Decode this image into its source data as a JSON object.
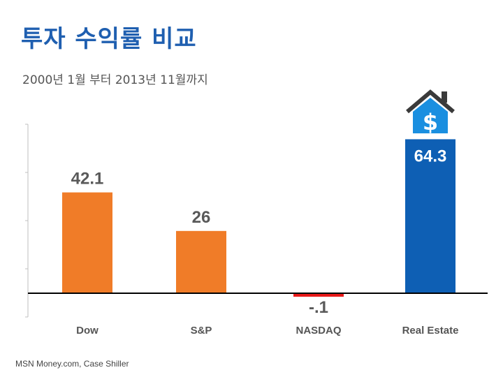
{
  "title": "투자 수익률 비교",
  "subtitle": "2000년 1월 부터 2013년 11월까지",
  "source": "MSN Money.com, Case Shiller",
  "colors": {
    "positive": "#f07c28",
    "negative": "#e81a1a",
    "highlight": "#0e5fb4",
    "title": "#1f5fb0"
  },
  "icon": "house-dollar-icon",
  "chart_data": {
    "type": "bar",
    "categories": [
      "Dow",
      "S&P",
      "NASDAQ",
      "Real Estate"
    ],
    "values": [
      42.1,
      26,
      -0.1,
      64.3
    ],
    "value_labels": [
      "42.1",
      "26",
      "-.1",
      "64.3"
    ],
    "highlight_category": "Real Estate",
    "ylim": [
      -5,
      70
    ],
    "grid": false,
    "legend": "none"
  }
}
